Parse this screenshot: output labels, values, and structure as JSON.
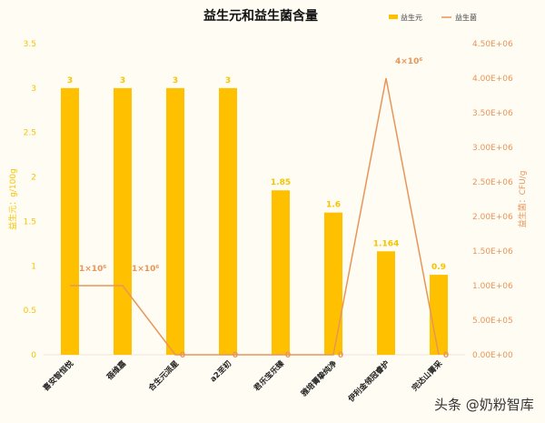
{
  "chart_data": {
    "type": "bar+line",
    "title": "益生元和益生菌含量",
    "categories": [
      "喜安智恒悦",
      "蓓维嘉",
      "合生元派星",
      "a2至初",
      "君乐宝乐臻",
      "雅培菁挚纯净",
      "伊利金领冠睿护",
      "完达山菁采"
    ],
    "series": [
      {
        "name": "益生元",
        "type": "bar",
        "axis": "left",
        "values": [
          3,
          3,
          3,
          3,
          1.85,
          1.6,
          1.164,
          0.9
        ],
        "labels": [
          "3",
          "3",
          "3",
          "3",
          "1.85",
          "1.6",
          "1.164",
          "0.9"
        ],
        "color": "#ffc000"
      },
      {
        "name": "益生菌",
        "type": "line",
        "axis": "right",
        "values": [
          1000000,
          1000000,
          0,
          0,
          0,
          0,
          4000000,
          0
        ],
        "labels": [
          "1×10⁶",
          "1×10⁶",
          "0",
          "0",
          "0",
          "0",
          "4×10⁶",
          "0"
        ],
        "color": "#e8955a"
      }
    ],
    "ylabel_left": "益生元：g/100g",
    "ylabel_right": "益生菌：CFU/g",
    "ylim_left": [
      0,
      3.5
    ],
    "ylim_right": [
      0,
      4500000
    ],
    "yticks_left": [
      "0",
      "0.5",
      "1",
      "1.5",
      "2",
      "2.5",
      "3",
      "3.5"
    ],
    "yticks_right": [
      "0.00E+00",
      "5.00E+05",
      "1.00E+06",
      "1.50E+06",
      "2.00E+06",
      "2.50E+06",
      "3.00E+06",
      "3.50E+06",
      "4.00E+06",
      "4.50E+06"
    ],
    "legend_placement": "top-right",
    "grid": false
  },
  "watermark": "头条 @奶粉智库"
}
